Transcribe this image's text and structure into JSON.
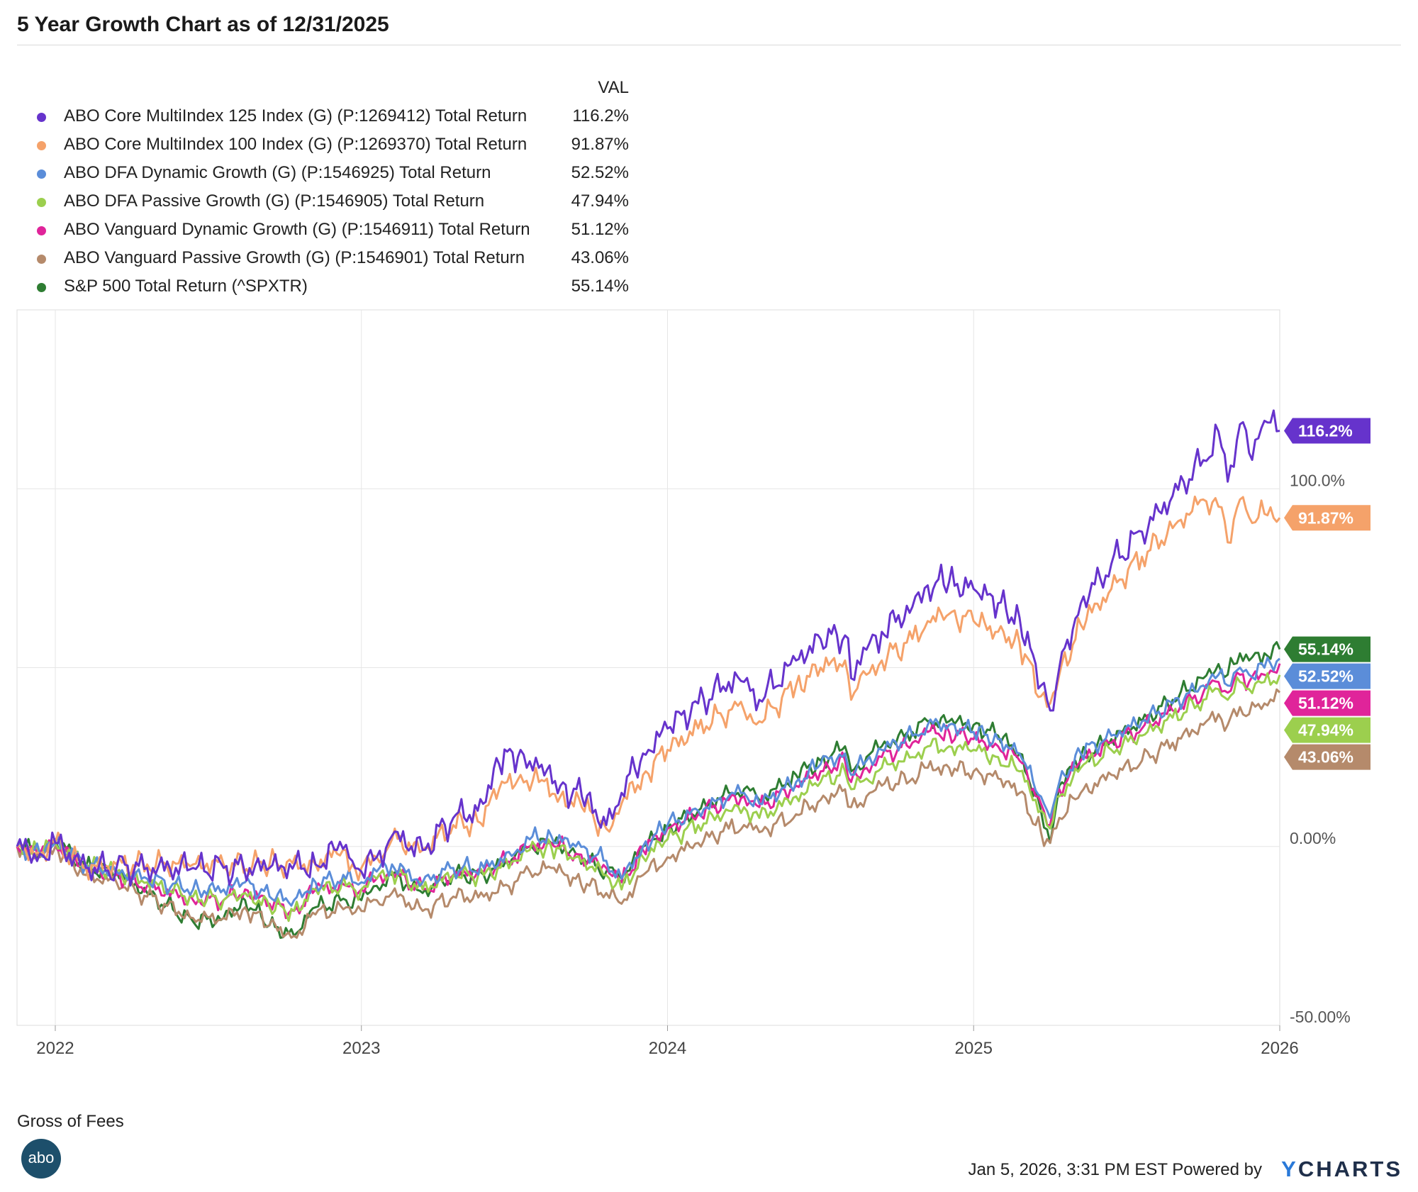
{
  "title": "5 Year Growth Chart as of 12/31/2025",
  "legend_header": "VAL",
  "footer": {
    "note": "Gross of Fees",
    "logo_text": "abo",
    "timestamp": "Jan 5, 2026, 3:31 PM EST Powered by",
    "brand_y": "Y",
    "brand_rest": "CHARTS"
  },
  "chart_data": {
    "type": "line",
    "title": "5 Year Growth Chart as of 12/31/2025",
    "xlabel": "",
    "ylabel": "",
    "x_range": [
      2021.875,
      2026.0
    ],
    "ylim": [
      -50,
      150
    ],
    "x_ticks": [
      {
        "value": 2022,
        "label": "2022"
      },
      {
        "value": 2023,
        "label": "2023"
      },
      {
        "value": 2024,
        "label": "2024"
      },
      {
        "value": 2025,
        "label": "2025"
      },
      {
        "value": 2026,
        "label": "2026"
      }
    ],
    "y_ticks": [
      {
        "value": 100,
        "label": "100.0%"
      },
      {
        "value": 0,
        "label": "0.00%"
      },
      {
        "value": -50,
        "label": "-50.00%"
      }
    ],
    "grid": true,
    "legend_position": "top-left",
    "series": [
      {
        "name": "ABO Core MultiIndex 125 Index (G) (P:1269412) Total Return",
        "value_label": "116.2%",
        "end_label": "116.2%",
        "color": "#6633cc",
        "x": [
          2021.875,
          2021.95,
          2022.0,
          2022.1,
          2022.2,
          2022.3,
          2022.45,
          2022.55,
          2022.7,
          2022.85,
          2022.92,
          2022.97,
          2023.0,
          2023.05,
          2023.1,
          2023.2,
          2023.3,
          2023.38,
          2023.45,
          2023.52,
          2023.58,
          2023.65,
          2023.72,
          2023.8,
          2023.85,
          2023.92,
          2024.0,
          2024.1,
          2024.2,
          2024.25,
          2024.3,
          2024.42,
          2024.5,
          2024.58,
          2024.6,
          2024.65,
          2024.7,
          2024.8,
          2024.85,
          2024.92,
          2025.0,
          2025.08,
          2025.15,
          2025.22,
          2025.25,
          2025.28,
          2025.35,
          2025.45,
          2025.55,
          2025.65,
          2025.75,
          2025.8,
          2025.83,
          2025.87,
          2025.9,
          2025.95,
          2026.0
        ],
        "values": [
          0,
          -2,
          1,
          -6,
          -6,
          -6,
          -6,
          -6,
          -6,
          -5,
          -1,
          -4,
          -7,
          -3,
          3,
          -1,
          8,
          10,
          23,
          27,
          22,
          17,
          14,
          6,
          15,
          26,
          33,
          40,
          46,
          46,
          41,
          52,
          58,
          59,
          47,
          55,
          60,
          67,
          73,
          74,
          72,
          68,
          64,
          45,
          38,
          50,
          68,
          79,
          88,
          98,
          108,
          116,
          102,
          118,
          110,
          119,
          116.2
        ]
      },
      {
        "name": "ABO Core MultiIndex 100 Index (G) (P:1269370) Total Return",
        "value_label": "91.87%",
        "end_label": "91.87%",
        "color": "#f5a26a",
        "x": [
          2021.875,
          2021.95,
          2022.0,
          2022.1,
          2022.2,
          2022.3,
          2022.45,
          2022.55,
          2022.7,
          2022.85,
          2022.92,
          2022.97,
          2023.0,
          2023.05,
          2023.1,
          2023.2,
          2023.3,
          2023.38,
          2023.45,
          2023.52,
          2023.58,
          2023.65,
          2023.72,
          2023.8,
          2023.85,
          2023.92,
          2024.0,
          2024.1,
          2024.2,
          2024.25,
          2024.3,
          2024.42,
          2024.5,
          2024.58,
          2024.6,
          2024.65,
          2024.7,
          2024.8,
          2024.85,
          2024.92,
          2025.0,
          2025.08,
          2025.15,
          2025.22,
          2025.25,
          2025.28,
          2025.35,
          2025.45,
          2025.55,
          2025.65,
          2025.75,
          2025.8,
          2025.83,
          2025.87,
          2025.9,
          2025.95,
          2026.0
        ],
        "values": [
          0,
          -2,
          1,
          -6,
          -5,
          -5,
          -5,
          -5,
          -5,
          -5,
          -2,
          -5,
          -6,
          -3,
          2,
          -1,
          6,
          7,
          16,
          20,
          18,
          14,
          11,
          5,
          12,
          20,
          27,
          33,
          38,
          38,
          35,
          45,
          50,
          52,
          41,
          48,
          52,
          58,
          63,
          65,
          63,
          60,
          57,
          42,
          40,
          48,
          62,
          72,
          81,
          89,
          97,
          95,
          85,
          97,
          92,
          93,
          91.87
        ]
      },
      {
        "name": "ABO DFA Dynamic Growth (G) (P:1546925) Total Return",
        "value_label": "52.52%",
        "end_label": "52.52%",
        "color": "#5b8dd9",
        "x": [
          2021.875,
          2021.95,
          2022.0,
          2022.1,
          2022.2,
          2022.3,
          2022.45,
          2022.55,
          2022.62,
          2022.7,
          2022.78,
          2022.85,
          2022.95,
          2023.0,
          2023.05,
          2023.1,
          2023.2,
          2023.3,
          2023.4,
          2023.5,
          2023.55,
          2023.62,
          2023.7,
          2023.8,
          2023.85,
          2023.92,
          2024.0,
          2024.1,
          2024.2,
          2024.25,
          2024.3,
          2024.42,
          2024.5,
          2024.58,
          2024.6,
          2024.65,
          2024.7,
          2024.8,
          2024.85,
          2024.92,
          2025.0,
          2025.08,
          2025.15,
          2025.22,
          2025.25,
          2025.28,
          2025.35,
          2025.45,
          2025.55,
          2025.65,
          2025.75,
          2025.8,
          2025.83,
          2025.87,
          2025.9,
          2025.95,
          2026.0
        ],
        "values": [
          0,
          -2,
          1,
          -5,
          -7,
          -9,
          -12,
          -12,
          -10,
          -14,
          -15,
          -10,
          -9,
          -10,
          -7,
          -5,
          -10,
          -6,
          -6,
          -2,
          2,
          3,
          0,
          -4,
          -9,
          0,
          6,
          10,
          14,
          15,
          12,
          18,
          23,
          26,
          20,
          24,
          27,
          31,
          34,
          34,
          32,
          30,
          26,
          14,
          8,
          18,
          26,
          31,
          35,
          40,
          45,
          48,
          45,
          50,
          48,
          50,
          52.52
        ]
      },
      {
        "name": "ABO DFA Passive Growth (G) (P:1546905) Total Return",
        "value_label": "47.94%",
        "end_label": "47.94%",
        "color": "#9ccf4e",
        "x": [
          2021.875,
          2021.95,
          2022.0,
          2022.1,
          2022.2,
          2022.3,
          2022.45,
          2022.55,
          2022.62,
          2022.7,
          2022.78,
          2022.85,
          2022.95,
          2023.0,
          2023.05,
          2023.1,
          2023.2,
          2023.3,
          2023.4,
          2023.5,
          2023.55,
          2023.62,
          2023.7,
          2023.8,
          2023.85,
          2023.92,
          2024.0,
          2024.1,
          2024.2,
          2024.25,
          2024.3,
          2024.42,
          2024.5,
          2024.58,
          2024.6,
          2024.65,
          2024.7,
          2024.8,
          2024.85,
          2024.92,
          2025.0,
          2025.08,
          2025.15,
          2025.22,
          2025.25,
          2025.28,
          2025.35,
          2025.45,
          2025.55,
          2025.65,
          2025.75,
          2025.8,
          2025.83,
          2025.87,
          2025.9,
          2025.95,
          2026.0
        ],
        "values": [
          0,
          -2,
          1,
          -5,
          -7,
          -10,
          -14,
          -15,
          -13,
          -17,
          -18,
          -12,
          -11,
          -12,
          -9,
          -7,
          -12,
          -8,
          -8,
          -4,
          -1,
          0,
          -3,
          -8,
          -12,
          -3,
          2,
          6,
          10,
          11,
          8,
          14,
          18,
          21,
          16,
          19,
          22,
          25,
          28,
          28,
          27,
          25,
          21,
          10,
          5,
          14,
          22,
          27,
          31,
          36,
          41,
          44,
          41,
          46,
          44,
          46,
          47.94
        ]
      },
      {
        "name": "ABO Vanguard Dynamic Growth (G) (P:1546911) Total Return",
        "value_label": "51.12%",
        "end_label": "51.12%",
        "color": "#e0249a",
        "x": [
          2021.875,
          2021.95,
          2022.0,
          2022.1,
          2022.2,
          2022.3,
          2022.45,
          2022.55,
          2022.62,
          2022.7,
          2022.78,
          2022.85,
          2022.95,
          2023.0,
          2023.05,
          2023.1,
          2023.2,
          2023.3,
          2023.4,
          2023.5,
          2023.55,
          2023.62,
          2023.7,
          2023.8,
          2023.85,
          2023.92,
          2024.0,
          2024.1,
          2024.2,
          2024.25,
          2024.3,
          2024.42,
          2024.5,
          2024.58,
          2024.6,
          2024.65,
          2024.7,
          2024.8,
          2024.85,
          2024.92,
          2025.0,
          2025.08,
          2025.15,
          2025.22,
          2025.25,
          2025.28,
          2025.35,
          2025.45,
          2025.55,
          2025.65,
          2025.75,
          2025.8,
          2025.83,
          2025.87,
          2025.9,
          2025.95,
          2026.0
        ],
        "values": [
          0,
          -2,
          1,
          -6,
          -8,
          -11,
          -15,
          -15,
          -12,
          -16,
          -18,
          -12,
          -11,
          -12,
          -9,
          -7,
          -12,
          -8,
          -7,
          -3,
          0,
          1,
          -2,
          -6,
          -10,
          -1,
          5,
          9,
          13,
          14,
          11,
          17,
          21,
          24,
          18,
          22,
          25,
          29,
          32,
          32,
          30,
          28,
          24,
          12,
          6,
          16,
          24,
          29,
          33,
          38,
          43,
          46,
          43,
          48,
          46,
          48,
          51.12
        ]
      },
      {
        "name": "ABO Vanguard Passive Growth (G) (P:1546901) Total Return",
        "value_label": "43.06%",
        "end_label": "43.06%",
        "color": "#b58a6b",
        "x": [
          2021.875,
          2021.95,
          2022.0,
          2022.1,
          2022.2,
          2022.3,
          2022.45,
          2022.55,
          2022.62,
          2022.7,
          2022.78,
          2022.85,
          2022.95,
          2023.0,
          2023.05,
          2023.1,
          2023.2,
          2023.3,
          2023.4,
          2023.5,
          2023.55,
          2023.62,
          2023.7,
          2023.8,
          2023.85,
          2023.92,
          2024.0,
          2024.1,
          2024.2,
          2024.25,
          2024.3,
          2024.42,
          2024.5,
          2024.58,
          2024.6,
          2024.65,
          2024.7,
          2024.8,
          2024.85,
          2024.92,
          2025.0,
          2025.08,
          2025.15,
          2025.22,
          2025.25,
          2025.28,
          2025.35,
          2025.45,
          2025.55,
          2025.65,
          2025.75,
          2025.8,
          2025.83,
          2025.87,
          2025.9,
          2025.95,
          2026.0
        ],
        "values": [
          0,
          -3,
          0,
          -8,
          -10,
          -14,
          -20,
          -20,
          -17,
          -22,
          -25,
          -19,
          -17,
          -18,
          -15,
          -13,
          -18,
          -14,
          -14,
          -10,
          -7,
          -6,
          -9,
          -13,
          -16,
          -8,
          -3,
          1,
          5,
          6,
          4,
          9,
          13,
          16,
          11,
          14,
          17,
          19,
          22,
          22,
          21,
          19,
          15,
          4,
          1,
          8,
          15,
          20,
          24,
          29,
          34,
          37,
          34,
          39,
          37,
          40,
          43.06
        ]
      },
      {
        "name": "S&P 500 Total Return (^SPXTR)",
        "value_label": "55.14%",
        "end_label": "55.14%",
        "color": "#2e7d32",
        "x": [
          2021.875,
          2021.95,
          2022.0,
          2022.1,
          2022.2,
          2022.3,
          2022.45,
          2022.55,
          2022.62,
          2022.7,
          2022.78,
          2022.85,
          2022.95,
          2023.0,
          2023.05,
          2023.1,
          2023.2,
          2023.3,
          2023.4,
          2023.5,
          2023.55,
          2023.62,
          2023.7,
          2023.8,
          2023.85,
          2023.92,
          2024.0,
          2024.1,
          2024.2,
          2024.25,
          2024.3,
          2024.42,
          2024.5,
          2024.58,
          2024.6,
          2024.65,
          2024.7,
          2024.8,
          2024.85,
          2024.92,
          2025.0,
          2025.08,
          2025.15,
          2025.22,
          2025.25,
          2025.28,
          2025.35,
          2025.45,
          2025.55,
          2025.65,
          2025.75,
          2025.8,
          2025.83,
          2025.87,
          2025.9,
          2025.95,
          2026.0
        ],
        "values": [
          0,
          -2,
          2,
          -6,
          -7,
          -13,
          -21,
          -20,
          -15,
          -22,
          -25,
          -17,
          -15,
          -15,
          -11,
          -8,
          -13,
          -8,
          -8,
          -3,
          0,
          1,
          -2,
          -7,
          -9,
          0,
          5,
          10,
          15,
          16,
          13,
          20,
          24,
          28,
          21,
          25,
          28,
          32,
          35,
          35,
          34,
          31,
          26,
          10,
          1,
          17,
          25,
          30,
          35,
          41,
          47,
          51,
          48,
          54,
          52,
          54,
          55.14
        ]
      }
    ]
  }
}
